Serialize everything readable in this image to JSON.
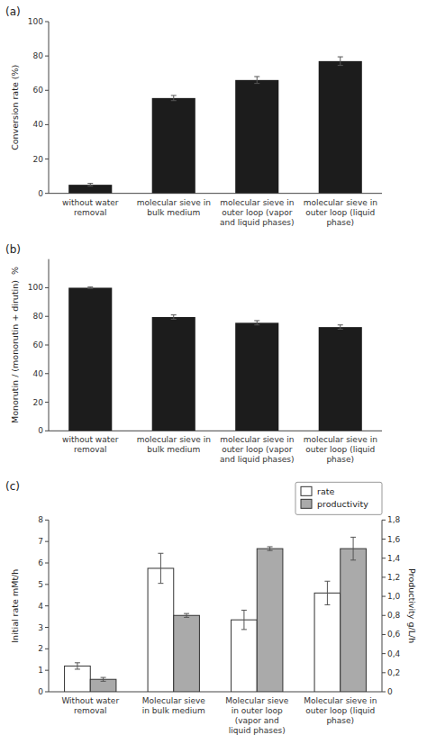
{
  "chart_data": [
    {
      "type": "bar",
      "title": "(a)",
      "categories": [
        "without water\nremoval",
        "molecular sieve in\nbulk medium",
        "molecular sieve in\nouter loop (vapor\nand liquid phases)",
        "molecular sieve in\nouter loop (liquid\nphase)"
      ],
      "values": [
        5.0,
        55.5,
        66.0,
        77.0
      ],
      "errors": [
        0.8,
        1.5,
        2.0,
        2.5
      ],
      "ylabel": "Conversion rate (%)",
      "ylim": [
        0,
        100
      ],
      "yticks": [
        0,
        20,
        40,
        60,
        80,
        100
      ],
      "color": "#1c1c1c"
    },
    {
      "type": "bar",
      "title": "(b)",
      "categories": [
        "without water\nremoval",
        "molecular sieve in\nbulk medium",
        "molecular sieve in\nouter loop (vapor\nand liquid phases)",
        "molecular sieve in\nouter loop (liquid\nphase)"
      ],
      "values": [
        100.0,
        79.5,
        75.5,
        72.5
      ],
      "errors": [
        0.5,
        1.5,
        1.5,
        1.5
      ],
      "ylabel": "Monorutin / (monorutin + dirutin)  %",
      "ylim": [
        0,
        120
      ],
      "yticks": [
        0,
        20,
        40,
        60,
        80,
        100
      ],
      "color": "#1c1c1c"
    },
    {
      "type": "bar",
      "title": "(c)",
      "categories": [
        "Without water\nremoval",
        "Molecular sieve\nin bulk medium",
        "Molecular sieve\nin outer loop\n(vapor and\nliquid phases)",
        "Molecular sieve in\nouter loop (liquid\nphase)"
      ],
      "series": [
        {
          "name": "rate",
          "color": "#ffffff",
          "values": [
            1.2,
            5.75,
            3.35,
            4.6
          ],
          "errors": [
            0.15,
            0.7,
            0.45,
            0.55
          ]
        },
        {
          "name": "productivity",
          "color": "#aaaaaa",
          "axis": "y2",
          "values": [
            0.13,
            0.8,
            1.5,
            1.5
          ],
          "errors": [
            0.02,
            0.02,
            0.02,
            0.12
          ]
        }
      ],
      "ylabel": "Initial rate mMt/h",
      "y2label": "Productivity g/L/h",
      "ylim": [
        0,
        8
      ],
      "yticks": [
        0,
        1,
        2,
        3,
        4,
        5,
        6,
        7,
        8
      ],
      "y2lim": [
        0,
        1.8
      ],
      "y2ticks": [
        0,
        {
          "value": 0.2,
          "label": "0,2"
        },
        {
          "value": 0.4,
          "label": "0,4"
        },
        {
          "value": 0.6,
          "label": "0,6"
        },
        {
          "value": 0.8,
          "label": "0,8"
        },
        {
          "value": 1.0,
          "label": "1,0"
        },
        {
          "value": 1.2,
          "label": "1,2"
        },
        {
          "value": 1.4,
          "label": "1,4"
        },
        {
          "value": 1.6,
          "label": "1,6"
        },
        {
          "value": 1.8,
          "label": "1,8"
        }
      ],
      "legend": "upper right"
    }
  ]
}
